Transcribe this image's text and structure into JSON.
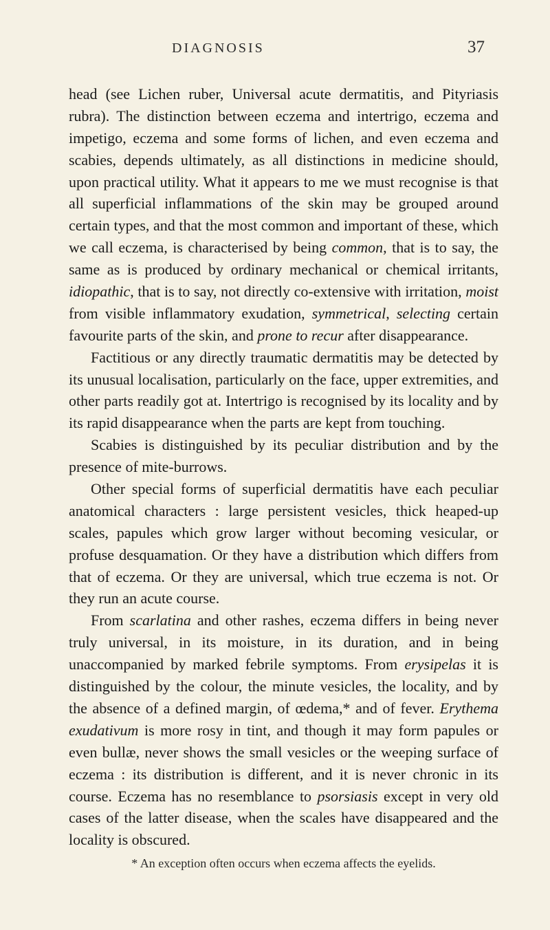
{
  "page": {
    "header_title": "DIAGNOSIS",
    "page_number": "37",
    "background_color": "#f5f1e4",
    "text_color": "#1a1a1a",
    "font_family": "Georgia, Times New Roman, serif",
    "body_font_size": 22,
    "line_height": 1.45
  },
  "paragraphs": {
    "p1_html": "head (see Lichen ruber, Universal acute dermatitis, and Pityriasis rubra). The distinction between eczema and intertrigo, eczema and impetigo, eczema and some forms of lichen, and even eczema and scabies, depends ultimately, as all distinctions in medicine should, upon practical utility. What it appears to me we must recognise is that all superficial inflammations of the skin may be grouped around certain types, and that the most common and important of these, which we call eczema, is characterised by being <em>common</em>, that is to say, the same as is produced by ordinary mechanical or chemical irritants, <em>idiopathic</em>, that is to say, not directly co-extensive with irritation, <em>moist</em> from visible inflammatory exudation, <em>symmetrical</em>, <em>selecting</em> certain favourite parts of the skin, and <em>prone to recur</em> after disappearance.",
    "p2_html": "Factitious or any directly traumatic dermatitis may be detected by its unusual localisation, particularly on the face, upper extremities, and other parts readily got at. Intertrigo is recognised by its locality and by its rapid disappearance when the parts are kept from touching.",
    "p3_html": "Scabies is distinguished by its peculiar distribution and by the presence of mite-burrows.",
    "p4_html": "Other special forms of superficial dermatitis have each peculiar anatomical characters : large persistent vesicles, thick heaped-up scales, papules which grow larger without becoming vesicular, or profuse desquamation. Or they have a distribution which differs from that of eczema. Or they are universal, which true eczema is not. Or they run an acute course.",
    "p5_html": "From <em>scarlatina</em> and other rashes, eczema differs in being never truly universal, in its moisture, in its duration, and in being unaccompanied by marked febrile symptoms. From <em>erysipelas</em> it is distinguished by the colour, the minute vesicles, the locality, and by the absence of a defined margin, of œdema,* and of fever. <em>Erythema exudativum</em> is more rosy in tint, and though it may form papules or even bullæ, never shows the small vesicles or the weeping surface of eczema : its distribution is different, and it is never chronic in its course. Eczema has no resemblance to <em>psorsiasis</em> except in very old cases of the latter disease, when the scales have disappeared and the locality is obscured."
  },
  "footnote": {
    "text": "* An exception often occurs when eczema affects the eyelids."
  }
}
